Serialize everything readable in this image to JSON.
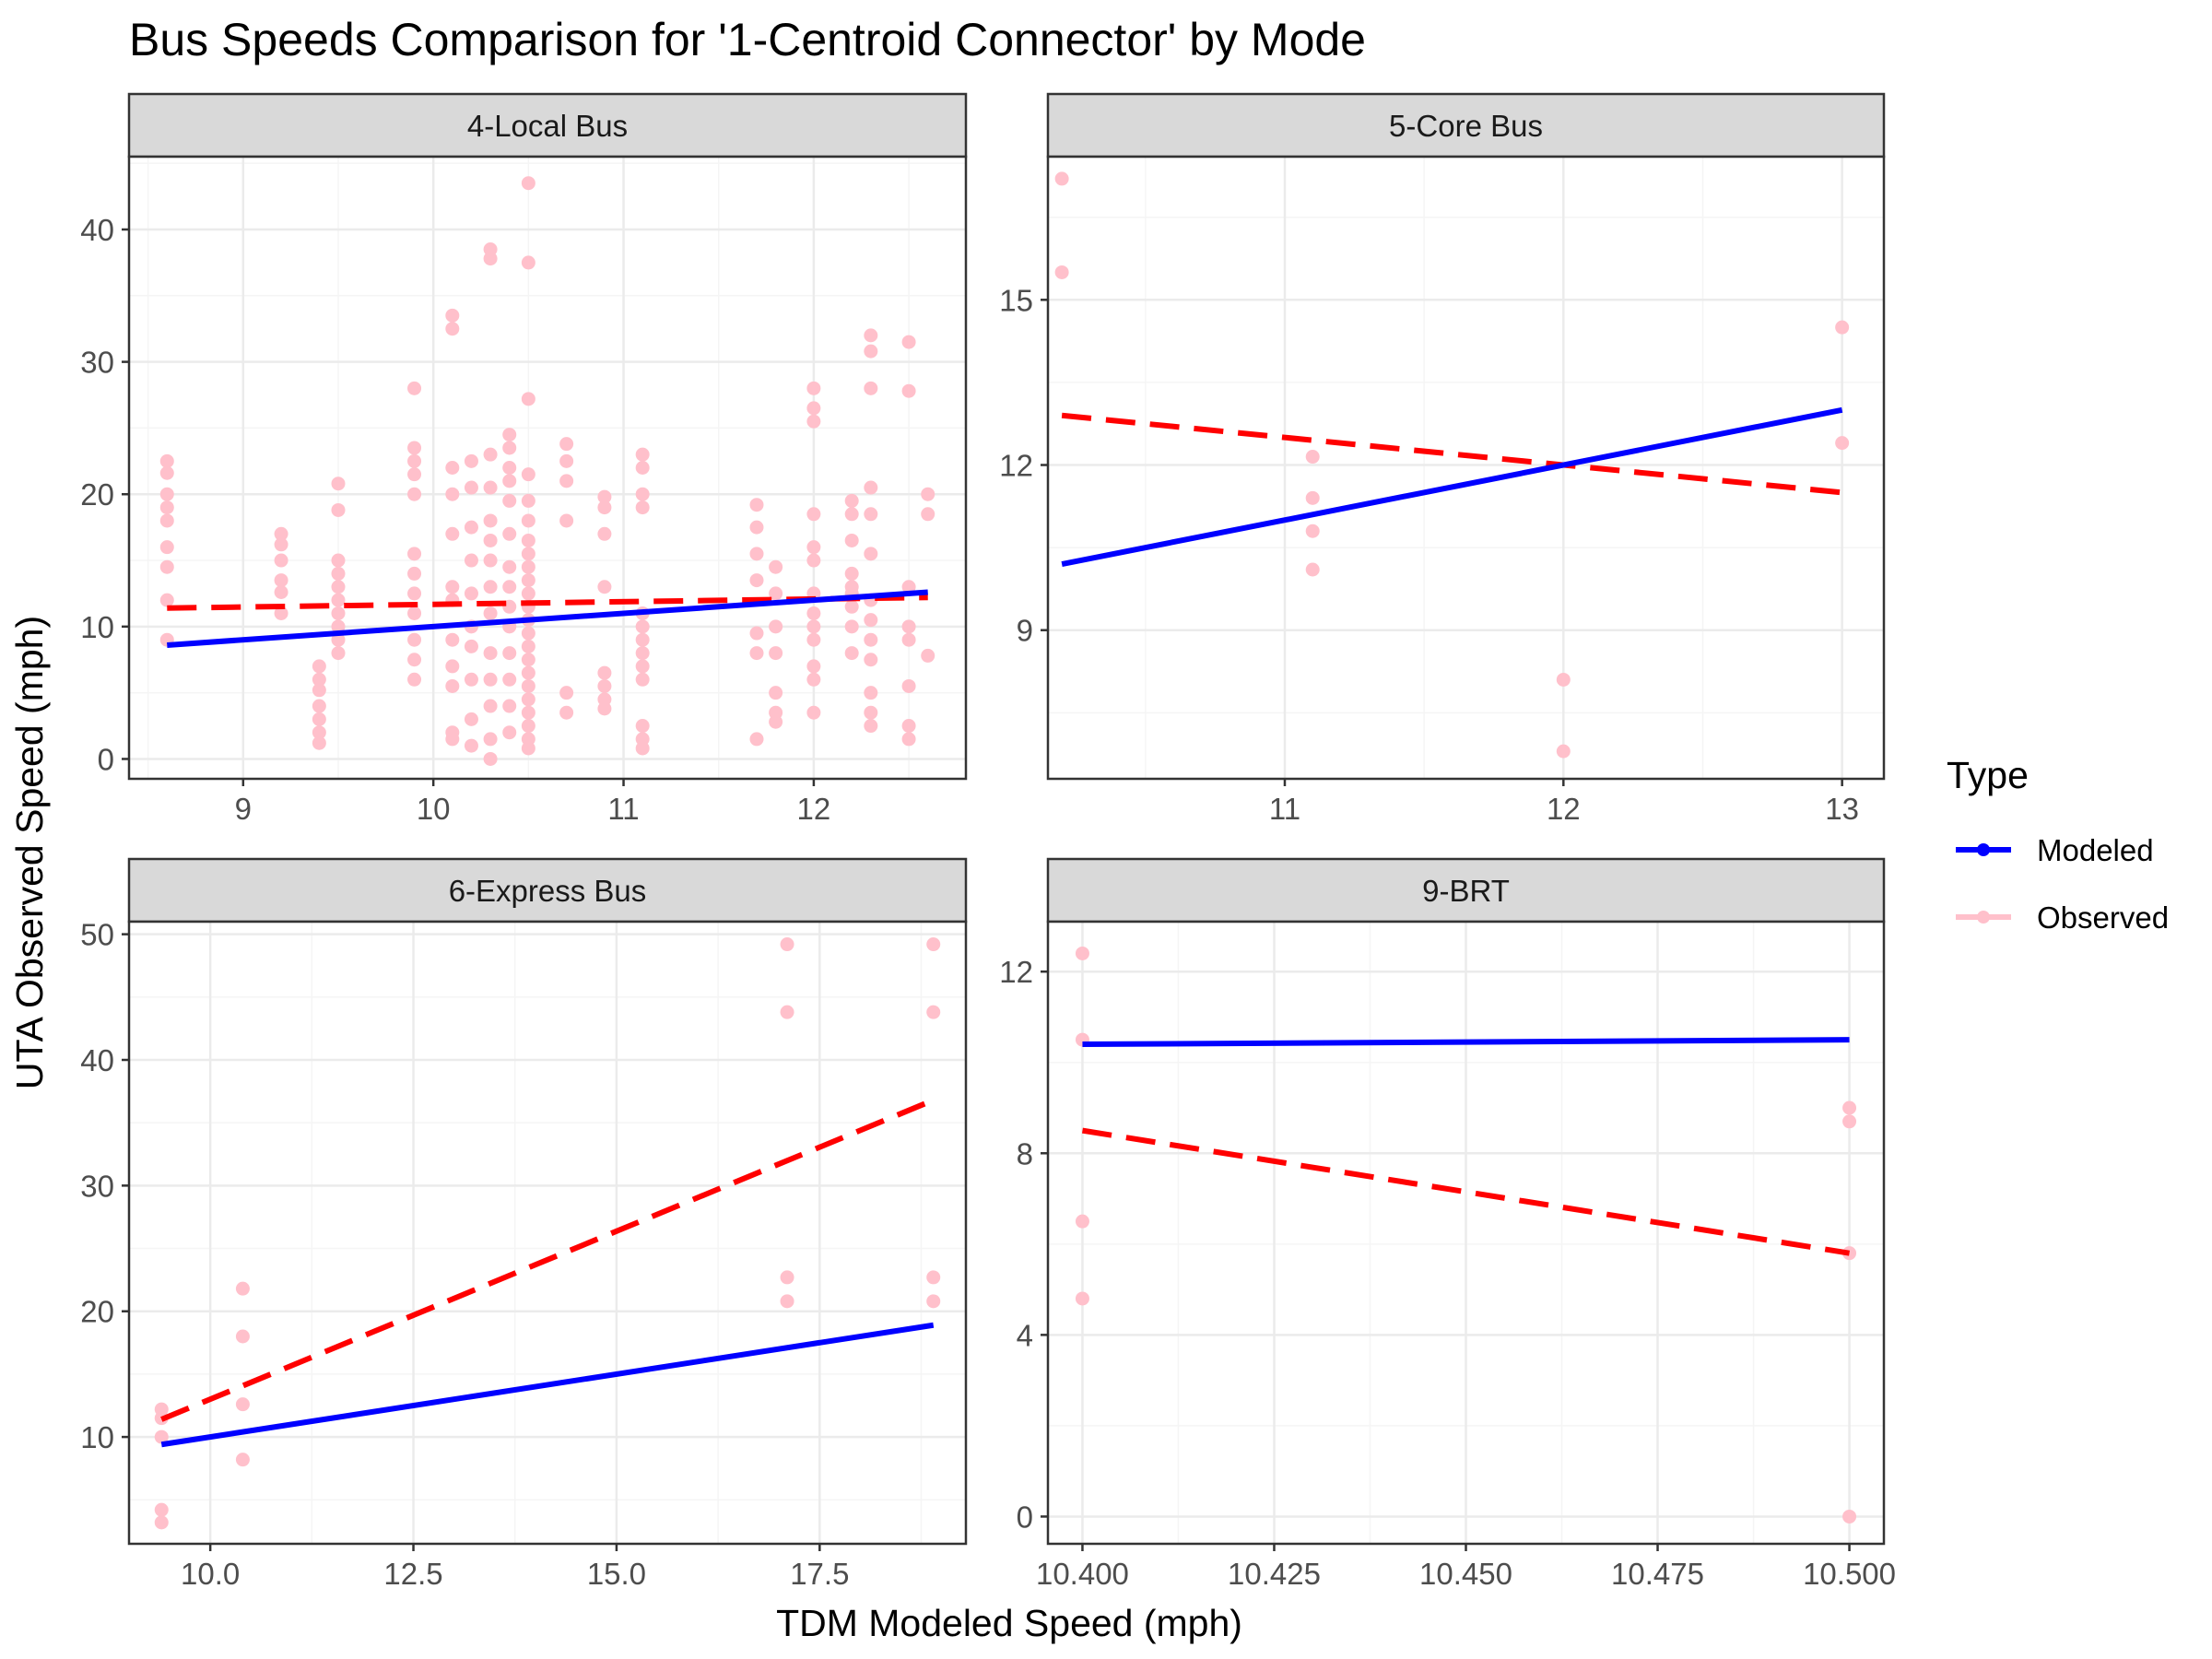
{
  "colors": {
    "modeled": "#0000ff",
    "observed_points": "#ffc0cb",
    "observed_fit": "#ff0000",
    "strip_bg": "#d9d9d9",
    "grid_major": "#ebebeb",
    "grid_minor": "#f5f5f5"
  },
  "chart_data": {
    "type": "scatter",
    "title": "Bus Speeds Comparison for '1-Centroid Connector' by Mode",
    "xlabel": "TDM Modeled Speed (mph)",
    "ylabel": "UTA Observed Speed (mph)",
    "grid": true,
    "legend": {
      "title": "Type",
      "placement": "right",
      "entries": [
        "Modeled",
        "Observed"
      ]
    },
    "panels": [
      {
        "id": "local",
        "label": "4-Local Bus",
        "xlim": [
          8.4,
          12.8
        ],
        "ylim": [
          -1.5,
          45.5
        ],
        "x_ticks": [
          9,
          10,
          11,
          12
        ],
        "x_tick_labels": [
          "9",
          "10",
          "11",
          "12"
        ],
        "y_ticks": [
          0,
          10,
          20,
          30,
          40
        ],
        "y_tick_labels": [
          "0",
          "10",
          "20",
          "30",
          "40"
        ],
        "modeled_line": [
          [
            8.6,
            8.6
          ],
          [
            12.6,
            12.6
          ]
        ],
        "observed_fit": [
          [
            8.6,
            11.4
          ],
          [
            12.6,
            12.2
          ]
        ],
        "points": [
          [
            8.6,
            22.5
          ],
          [
            8.6,
            21.6
          ],
          [
            8.6,
            20.0
          ],
          [
            8.6,
            19.0
          ],
          [
            8.6,
            18.0
          ],
          [
            8.6,
            16.0
          ],
          [
            8.6,
            14.5
          ],
          [
            8.6,
            12.0
          ],
          [
            8.6,
            9.0
          ],
          [
            9.2,
            17.0
          ],
          [
            9.2,
            16.2
          ],
          [
            9.2,
            15.0
          ],
          [
            9.2,
            13.5
          ],
          [
            9.2,
            12.6
          ],
          [
            9.2,
            11.0
          ],
          [
            9.4,
            7.0
          ],
          [
            9.4,
            6.0
          ],
          [
            9.4,
            5.2
          ],
          [
            9.4,
            4.0
          ],
          [
            9.4,
            3.0
          ],
          [
            9.4,
            2.0
          ],
          [
            9.4,
            1.2
          ],
          [
            9.5,
            20.8
          ],
          [
            9.5,
            18.8
          ],
          [
            9.5,
            15.0
          ],
          [
            9.5,
            14.0
          ],
          [
            9.5,
            13.0
          ],
          [
            9.5,
            12.0
          ],
          [
            9.5,
            11.0
          ],
          [
            9.5,
            10.0
          ],
          [
            9.5,
            9.0
          ],
          [
            9.5,
            8.0
          ],
          [
            9.9,
            28.0
          ],
          [
            9.9,
            23.5
          ],
          [
            9.9,
            22.5
          ],
          [
            9.9,
            21.5
          ],
          [
            9.9,
            20.0
          ],
          [
            9.9,
            15.5
          ],
          [
            9.9,
            14.0
          ],
          [
            9.9,
            12.5
          ],
          [
            9.9,
            11.0
          ],
          [
            9.9,
            9.0
          ],
          [
            9.9,
            7.5
          ],
          [
            9.9,
            6.0
          ],
          [
            10.1,
            33.5
          ],
          [
            10.1,
            32.5
          ],
          [
            10.1,
            22.0
          ],
          [
            10.1,
            20.0
          ],
          [
            10.1,
            17.0
          ],
          [
            10.1,
            13.0
          ],
          [
            10.1,
            12.0
          ],
          [
            10.1,
            9.0
          ],
          [
            10.1,
            7.0
          ],
          [
            10.1,
            5.5
          ],
          [
            10.1,
            2.0
          ],
          [
            10.1,
            1.5
          ],
          [
            10.2,
            22.5
          ],
          [
            10.2,
            20.5
          ],
          [
            10.2,
            17.5
          ],
          [
            10.2,
            15.0
          ],
          [
            10.2,
            12.5
          ],
          [
            10.2,
            10.0
          ],
          [
            10.2,
            8.5
          ],
          [
            10.2,
            6.0
          ],
          [
            10.2,
            3.0
          ],
          [
            10.2,
            1.0
          ],
          [
            10.3,
            38.5
          ],
          [
            10.3,
            37.8
          ],
          [
            10.3,
            23.0
          ],
          [
            10.3,
            20.5
          ],
          [
            10.3,
            18.0
          ],
          [
            10.3,
            16.5
          ],
          [
            10.3,
            15.0
          ],
          [
            10.3,
            13.0
          ],
          [
            10.3,
            11.0
          ],
          [
            10.3,
            8.0
          ],
          [
            10.3,
            6.0
          ],
          [
            10.3,
            4.0
          ],
          [
            10.3,
            1.5
          ],
          [
            10.3,
            0.0
          ],
          [
            10.4,
            24.5
          ],
          [
            10.4,
            23.5
          ],
          [
            10.4,
            22.0
          ],
          [
            10.4,
            21.0
          ],
          [
            10.4,
            19.5
          ],
          [
            10.4,
            17.0
          ],
          [
            10.4,
            14.5
          ],
          [
            10.4,
            13.0
          ],
          [
            10.4,
            11.5
          ],
          [
            10.4,
            10.0
          ],
          [
            10.4,
            8.0
          ],
          [
            10.4,
            6.0
          ],
          [
            10.4,
            4.0
          ],
          [
            10.4,
            2.0
          ],
          [
            10.5,
            43.5
          ],
          [
            10.5,
            37.5
          ],
          [
            10.5,
            27.2
          ],
          [
            10.5,
            21.5
          ],
          [
            10.5,
            19.5
          ],
          [
            10.5,
            18.0
          ],
          [
            10.5,
            16.5
          ],
          [
            10.5,
            15.5
          ],
          [
            10.5,
            14.5
          ],
          [
            10.5,
            13.5
          ],
          [
            10.5,
            12.5
          ],
          [
            10.5,
            11.5
          ],
          [
            10.5,
            10.5
          ],
          [
            10.5,
            9.5
          ],
          [
            10.5,
            8.5
          ],
          [
            10.5,
            7.5
          ],
          [
            10.5,
            6.5
          ],
          [
            10.5,
            5.5
          ],
          [
            10.5,
            4.5
          ],
          [
            10.5,
            3.5
          ],
          [
            10.5,
            2.5
          ],
          [
            10.5,
            1.5
          ],
          [
            10.5,
            0.8
          ],
          [
            10.7,
            23.8
          ],
          [
            10.7,
            22.5
          ],
          [
            10.7,
            21.0
          ],
          [
            10.7,
            18.0
          ],
          [
            10.7,
            5.0
          ],
          [
            10.7,
            3.5
          ],
          [
            10.9,
            19.8
          ],
          [
            10.9,
            19.0
          ],
          [
            10.9,
            17.0
          ],
          [
            10.9,
            13.0
          ],
          [
            10.9,
            6.5
          ],
          [
            10.9,
            5.5
          ],
          [
            10.9,
            4.5
          ],
          [
            10.9,
            3.8
          ],
          [
            11.1,
            23.0
          ],
          [
            11.1,
            22.0
          ],
          [
            11.1,
            20.0
          ],
          [
            11.1,
            19.0
          ],
          [
            11.1,
            11.0
          ],
          [
            11.1,
            10.0
          ],
          [
            11.1,
            9.0
          ],
          [
            11.1,
            8.0
          ],
          [
            11.1,
            7.0
          ],
          [
            11.1,
            6.0
          ],
          [
            11.1,
            2.5
          ],
          [
            11.1,
            1.5
          ],
          [
            11.1,
            0.8
          ],
          [
            11.7,
            19.2
          ],
          [
            11.7,
            17.5
          ],
          [
            11.7,
            15.5
          ],
          [
            11.7,
            13.5
          ],
          [
            11.7,
            9.5
          ],
          [
            11.7,
            8.0
          ],
          [
            11.7,
            1.5
          ],
          [
            11.8,
            14.5
          ],
          [
            11.8,
            12.5
          ],
          [
            11.8,
            10.0
          ],
          [
            11.8,
            8.0
          ],
          [
            11.8,
            5.0
          ],
          [
            11.8,
            3.5
          ],
          [
            11.8,
            2.8
          ],
          [
            12.0,
            28.0
          ],
          [
            12.0,
            26.5
          ],
          [
            12.0,
            25.5
          ],
          [
            12.0,
            18.5
          ],
          [
            12.0,
            16.0
          ],
          [
            12.0,
            15.0
          ],
          [
            12.0,
            12.5
          ],
          [
            12.0,
            11.0
          ],
          [
            12.0,
            10.0
          ],
          [
            12.0,
            9.0
          ],
          [
            12.0,
            7.0
          ],
          [
            12.0,
            6.0
          ],
          [
            12.0,
            3.5
          ],
          [
            12.2,
            19.5
          ],
          [
            12.2,
            18.5
          ],
          [
            12.2,
            16.5
          ],
          [
            12.2,
            14.0
          ],
          [
            12.2,
            13.0
          ],
          [
            12.2,
            12.5
          ],
          [
            12.2,
            11.5
          ],
          [
            12.2,
            10.0
          ],
          [
            12.2,
            8.0
          ],
          [
            12.3,
            32.0
          ],
          [
            12.3,
            30.8
          ],
          [
            12.3,
            28.0
          ],
          [
            12.3,
            20.5
          ],
          [
            12.3,
            18.5
          ],
          [
            12.3,
            15.5
          ],
          [
            12.3,
            12.0
          ],
          [
            12.3,
            10.5
          ],
          [
            12.3,
            9.0
          ],
          [
            12.3,
            7.5
          ],
          [
            12.3,
            5.0
          ],
          [
            12.3,
            3.5
          ],
          [
            12.3,
            2.5
          ],
          [
            12.5,
            31.5
          ],
          [
            12.5,
            27.8
          ],
          [
            12.5,
            13.0
          ],
          [
            12.5,
            10.0
          ],
          [
            12.5,
            9.0
          ],
          [
            12.5,
            5.5
          ],
          [
            12.5,
            2.5
          ],
          [
            12.5,
            1.5
          ],
          [
            12.6,
            20.0
          ],
          [
            12.6,
            18.5
          ],
          [
            12.6,
            7.8
          ]
        ]
      },
      {
        "id": "core",
        "label": "5-Core Bus",
        "xlim": [
          10.15,
          13.15
        ],
        "ylim": [
          6.3,
          17.6
        ],
        "x_ticks": [
          11,
          12,
          13
        ],
        "x_tick_labels": [
          "11",
          "12",
          "13"
        ],
        "y_ticks": [
          9,
          12,
          15
        ],
        "y_tick_labels": [
          "9",
          "12",
          "15"
        ],
        "modeled_line": [
          [
            10.2,
            10.2
          ],
          [
            13.0,
            13.0
          ]
        ],
        "observed_fit": [
          [
            10.2,
            12.9
          ],
          [
            13.0,
            11.5
          ]
        ],
        "points": [
          [
            10.2,
            17.2
          ],
          [
            10.2,
            15.5
          ],
          [
            11.1,
            12.15
          ],
          [
            11.1,
            11.4
          ],
          [
            11.1,
            10.8
          ],
          [
            11.1,
            10.1
          ],
          [
            12.0,
            8.1
          ],
          [
            12.0,
            6.8
          ],
          [
            13.0,
            14.5
          ],
          [
            13.0,
            12.4
          ]
        ]
      },
      {
        "id": "express",
        "label": "6-Express Bus",
        "xlim": [
          9.0,
          19.3
        ],
        "ylim": [
          1.5,
          51.0
        ],
        "x_ticks": [
          10.0,
          12.5,
          15.0,
          17.5
        ],
        "x_tick_labels": [
          "10.0",
          "12.5",
          "15.0",
          "17.5"
        ],
        "y_ticks": [
          10,
          20,
          30,
          40,
          50
        ],
        "y_tick_labels": [
          "10",
          "20",
          "30",
          "40",
          "50"
        ],
        "modeled_line": [
          [
            9.4,
            9.4
          ],
          [
            18.9,
            18.9
          ]
        ],
        "observed_fit": [
          [
            9.4,
            11.4
          ],
          [
            18.9,
            36.8
          ]
        ],
        "points": [
          [
            9.4,
            12.2
          ],
          [
            9.4,
            11.5
          ],
          [
            9.4,
            10.0
          ],
          [
            9.4,
            4.2
          ],
          [
            9.4,
            3.2
          ],
          [
            10.4,
            21.8
          ],
          [
            10.4,
            18.0
          ],
          [
            10.4,
            12.6
          ],
          [
            10.4,
            8.2
          ],
          [
            17.1,
            49.2
          ],
          [
            17.1,
            43.8
          ],
          [
            17.1,
            22.7
          ],
          [
            17.1,
            20.8
          ],
          [
            18.9,
            49.2
          ],
          [
            18.9,
            43.8
          ],
          [
            18.9,
            22.7
          ],
          [
            18.9,
            20.8
          ]
        ]
      },
      {
        "id": "brt",
        "label": "9-BRT",
        "xlim": [
          10.3955,
          10.5045
        ],
        "ylim": [
          -0.6,
          13.1
        ],
        "x_ticks": [
          10.4,
          10.425,
          10.45,
          10.475,
          10.5
        ],
        "x_tick_labels": [
          "10.400",
          "10.425",
          "10.450",
          "10.475",
          "10.500"
        ],
        "y_ticks": [
          0,
          4,
          8,
          12
        ],
        "y_tick_labels": [
          "0",
          "4",
          "8",
          "12"
        ],
        "modeled_line": [
          [
            10.4,
            10.4
          ],
          [
            10.5,
            10.5
          ]
        ],
        "observed_fit": [
          [
            10.4,
            8.5
          ],
          [
            10.5,
            5.8
          ]
        ],
        "points": [
          [
            10.4,
            12.4
          ],
          [
            10.4,
            10.5
          ],
          [
            10.4,
            6.5
          ],
          [
            10.4,
            4.8
          ],
          [
            10.5,
            9.0
          ],
          [
            10.5,
            8.7
          ],
          [
            10.5,
            5.8
          ],
          [
            10.5,
            0.0
          ]
        ]
      }
    ]
  }
}
